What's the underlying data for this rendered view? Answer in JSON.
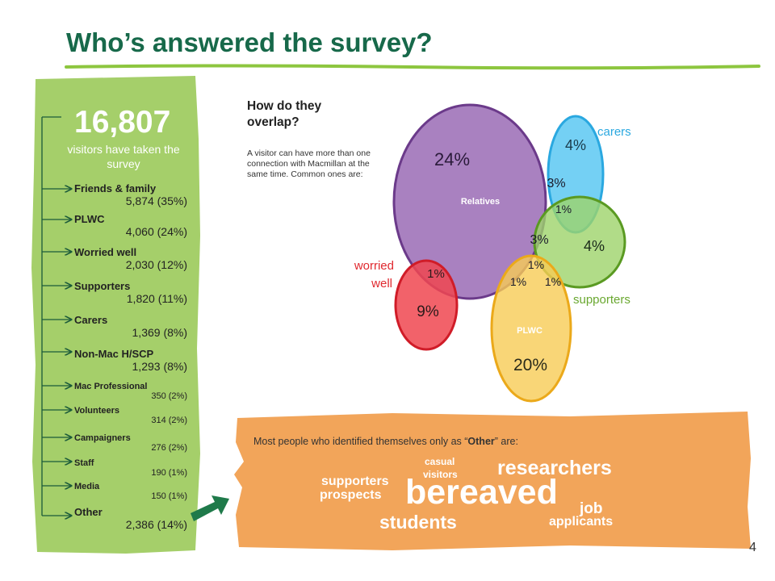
{
  "title": "Who’s answered the survey?",
  "page_number": "4",
  "summary": {
    "total": "16,807",
    "caption": "visitors have taken the survey"
  },
  "categories": [
    {
      "name": "Friends & family",
      "value": "5,874 (35%)"
    },
    {
      "name": "PLWC",
      "value": "4,060 (24%)"
    },
    {
      "name": "Worried well",
      "value": "2,030 (12%)"
    },
    {
      "name": "Supporters",
      "value": "1,820 (11%)"
    },
    {
      "name": "Carers",
      "value": "1,369 (8%)"
    },
    {
      "name": "Non-Mac H/SCP",
      "value": "1,293 (8%)"
    },
    {
      "name": "Mac Professional",
      "value": "350 (2%)"
    },
    {
      "name": "Volunteers",
      "value": "314 (2%)"
    },
    {
      "name": "Campaigners",
      "value": "276 (2%)"
    },
    {
      "name": "Staff",
      "value": "190 (1%)"
    },
    {
      "name": "Media",
      "value": "150 (1%)"
    },
    {
      "name": "Other",
      "value": "2,386 (14%)"
    }
  ],
  "overlap": {
    "heading": "How do they overlap?",
    "text": "A visitor can have more than one connection with Macmillan at the same time. Common ones are:",
    "sets": {
      "relatives": {
        "label": "Relatives",
        "pct": "24%",
        "color": "#8e5ca8"
      },
      "carers": {
        "label": "carers",
        "pct": "4%",
        "color": "#4fc3f0"
      },
      "supporters": {
        "label": "supporters",
        "pct": "4%",
        "color": "#8dc44a"
      },
      "worried": {
        "label": "worried well",
        "pct": "9%",
        "color": "#e8343d"
      },
      "plwc": {
        "label": "PLWC",
        "pct": "20%",
        "color": "#f5c445"
      }
    },
    "intersections": {
      "relatives_carers": "3%",
      "relatives_carers_supporters": "1%",
      "relatives_supporters": "3%",
      "relatives_supporters_plwc": "1%",
      "relatives_worried": "1%",
      "relatives_plwc": "1%",
      "supporters_plwc": "1%"
    }
  },
  "other": {
    "intro_pre": "Most people who identified themselves only as “",
    "intro_bold": "Other",
    "intro_post": "” are:",
    "words": {
      "bereaved": "bereaved",
      "researchers": "researchers",
      "students": "students",
      "supporters": "supporters",
      "prospects": "prospects",
      "casual": "casual",
      "visitors": "visitors",
      "job": "job",
      "applicants": "applicants"
    }
  },
  "colors": {
    "title": "#17694a",
    "left_panel": "#a5cf6a",
    "orange_panel": "#f2a55a",
    "arrow": "#1f7a4a"
  }
}
